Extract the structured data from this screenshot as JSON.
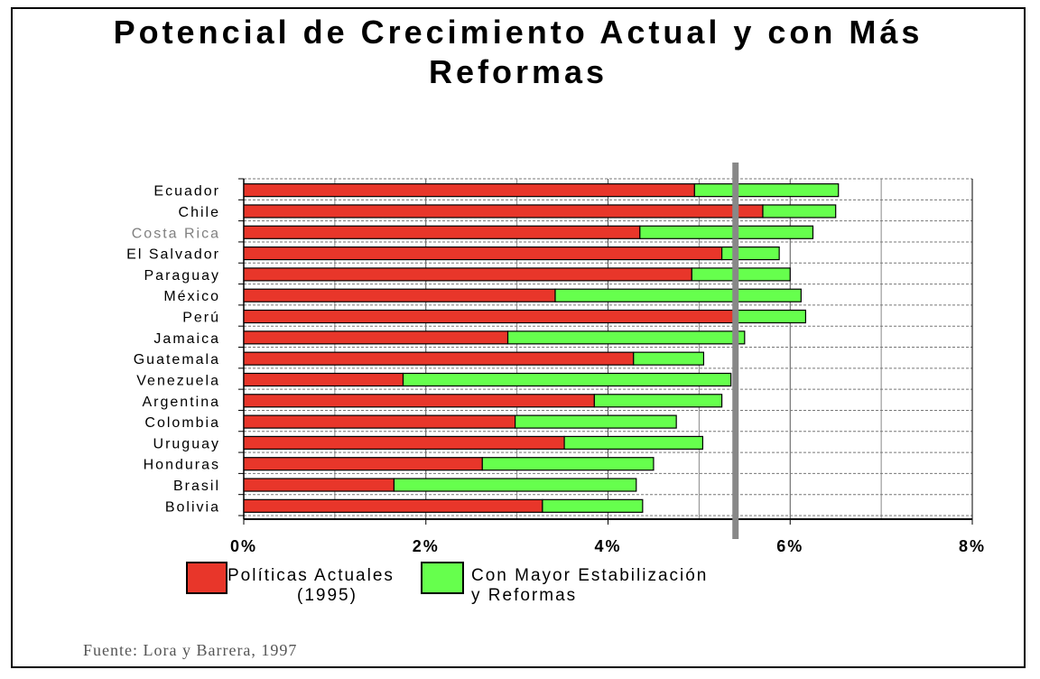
{
  "chart_data": {
    "type": "bar",
    "orientation": "horizontal",
    "stacked": true,
    "title_line1": "Potencial de Crecimiento Actual y con Más",
    "title_line2": "Reformas",
    "categories": [
      "Ecuador",
      "Chile",
      "Costa Rica",
      "El Salvador",
      "Paraguay",
      "México",
      "Perú",
      "Jamaica",
      "Guatemala",
      "Venezuela",
      "Argentina",
      "Colombia",
      "Uruguay",
      "Honduras",
      "Brasil",
      "Bolivia"
    ],
    "category_colors": [
      "#000000",
      "#000000",
      "#808080",
      "#000000",
      "#000000",
      "#000000",
      "#000000",
      "#000000",
      "#000000",
      "#000000",
      "#000000",
      "#000000",
      "#000000",
      "#000000",
      "#000000",
      "#000000"
    ],
    "series": [
      {
        "name": "Políticas Actuales (1995)",
        "color": "#e8362a",
        "values": [
          4.95,
          5.7,
          4.35,
          5.25,
          4.92,
          3.42,
          5.4,
          2.9,
          4.28,
          1.75,
          3.85,
          2.98,
          3.52,
          2.62,
          1.65,
          3.28
        ]
      },
      {
        "name": "Con Mayor Estabilización y Reformas",
        "color": "#66ff4d",
        "values": [
          1.58,
          0.8,
          1.9,
          0.63,
          1.08,
          2.7,
          0.77,
          2.6,
          0.77,
          3.6,
          1.4,
          1.77,
          1.52,
          1.88,
          2.66,
          1.1
        ]
      }
    ],
    "xticks": [
      "0%",
      "2%",
      "4%",
      "6%",
      "8%"
    ],
    "xlim": [
      0,
      8
    ],
    "reference_line": 5.4,
    "grid": true,
    "legend": {
      "label1_line1": "Políticas Actuales",
      "label1_line2": "(1995)",
      "label2_line1": "Con Mayor Estabilización",
      "label2_line2": "y Reformas"
    },
    "source": "Fuente: Lora y Barrera, 1997"
  }
}
